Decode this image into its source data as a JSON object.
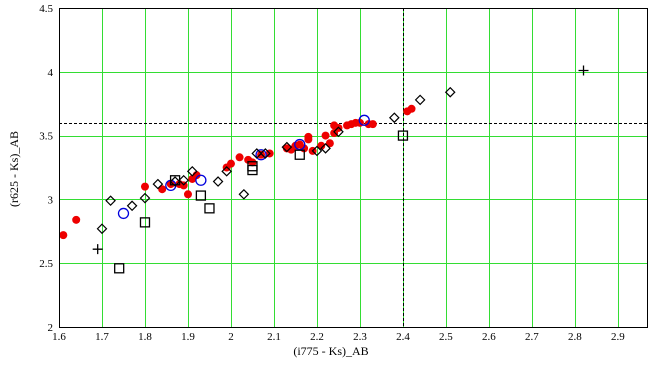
{
  "chart_data": {
    "type": "scatter",
    "title": "",
    "xlabel": "(i775 - Ks)_AB",
    "ylabel": "(r625 - Ks)_AB",
    "xlim": [
      1.6,
      2.97
    ],
    "ylim": [
      2,
      4.5
    ],
    "xticks": [
      1.6,
      1.7,
      1.8,
      1.9,
      2,
      2.1,
      2.2,
      2.3,
      2.4,
      2.5,
      2.6,
      2.7,
      2.8,
      2.9
    ],
    "xtick_labels": [
      "1.6",
      "1.7",
      "1.8",
      "1.9",
      "2",
      "2.1",
      "2.2",
      "2.3",
      "2.4",
      "2.5",
      "2.6",
      "2.7",
      "2.8",
      "2.9"
    ],
    "yticks": [
      2,
      2.5,
      3,
      3.5,
      4,
      4.5
    ],
    "ytick_labels": [
      "2",
      "2.5",
      "3",
      "3.5",
      "4",
      "4.5"
    ],
    "grid": true,
    "grid_color": "#33dd33",
    "reference_lines": {
      "x": 2.4,
      "y": 3.6
    },
    "series": [
      {
        "marker": "filled-circle",
        "color": "#ee0000",
        "points": [
          [
            1.61,
            2.72
          ],
          [
            1.64,
            2.84
          ],
          [
            1.8,
            3.1
          ],
          [
            1.84,
            3.08
          ],
          [
            1.86,
            3.12
          ],
          [
            1.88,
            3.12
          ],
          [
            1.89,
            3.11
          ],
          [
            1.9,
            3.04
          ],
          [
            1.91,
            3.16
          ],
          [
            1.92,
            3.19
          ],
          [
            1.99,
            3.25
          ],
          [
            2.0,
            3.28
          ],
          [
            2.02,
            3.33
          ],
          [
            2.04,
            3.31
          ],
          [
            2.05,
            3.29
          ],
          [
            2.07,
            3.35
          ],
          [
            2.09,
            3.36
          ],
          [
            2.13,
            3.4
          ],
          [
            2.14,
            3.39
          ],
          [
            2.15,
            3.42
          ],
          [
            2.16,
            3.43
          ],
          [
            2.17,
            3.4
          ],
          [
            2.18,
            3.47
          ],
          [
            2.18,
            3.49
          ],
          [
            2.19,
            3.38
          ],
          [
            2.21,
            3.42
          ],
          [
            2.22,
            3.5
          ],
          [
            2.23,
            3.44
          ],
          [
            2.24,
            3.52
          ],
          [
            2.24,
            3.58
          ],
          [
            2.25,
            3.56
          ],
          [
            2.27,
            3.58
          ],
          [
            2.28,
            3.59
          ],
          [
            2.29,
            3.6
          ],
          [
            2.3,
            3.6
          ],
          [
            2.32,
            3.59
          ],
          [
            2.33,
            3.59
          ],
          [
            2.41,
            3.69
          ],
          [
            2.42,
            3.71
          ]
        ]
      },
      {
        "marker": "open-circle",
        "color": "#0000dd",
        "points": [
          [
            1.75,
            2.89
          ],
          [
            1.86,
            3.11
          ],
          [
            1.93,
            3.15
          ],
          [
            2.07,
            3.35
          ],
          [
            2.16,
            3.43
          ],
          [
            2.31,
            3.62
          ]
        ]
      },
      {
        "marker": "open-diamond",
        "color": "#000000",
        "points": [
          [
            1.7,
            2.77
          ],
          [
            1.72,
            2.99
          ],
          [
            1.77,
            2.95
          ],
          [
            1.8,
            3.01
          ],
          [
            1.83,
            3.12
          ],
          [
            1.87,
            3.14
          ],
          [
            1.89,
            3.15
          ],
          [
            1.91,
            3.22
          ],
          [
            1.97,
            3.14
          ],
          [
            1.99,
            3.22
          ],
          [
            2.03,
            3.04
          ],
          [
            2.06,
            3.36
          ],
          [
            2.08,
            3.36
          ],
          [
            2.13,
            3.41
          ],
          [
            2.2,
            3.38
          ],
          [
            2.22,
            3.4
          ],
          [
            2.25,
            3.53
          ],
          [
            2.38,
            3.64
          ],
          [
            2.44,
            3.78
          ],
          [
            2.51,
            3.84
          ]
        ]
      },
      {
        "marker": "open-square",
        "color": "#000000",
        "points": [
          [
            1.74,
            2.46
          ],
          [
            1.8,
            2.82
          ],
          [
            1.87,
            3.15
          ],
          [
            1.93,
            3.03
          ],
          [
            1.95,
            2.93
          ],
          [
            2.05,
            3.23
          ],
          [
            2.05,
            3.26
          ],
          [
            2.16,
            3.35
          ],
          [
            2.4,
            3.5
          ]
        ]
      },
      {
        "marker": "plus",
        "color": "#000000",
        "points": [
          [
            1.69,
            2.61
          ],
          [
            2.82,
            4.01
          ]
        ]
      }
    ]
  }
}
